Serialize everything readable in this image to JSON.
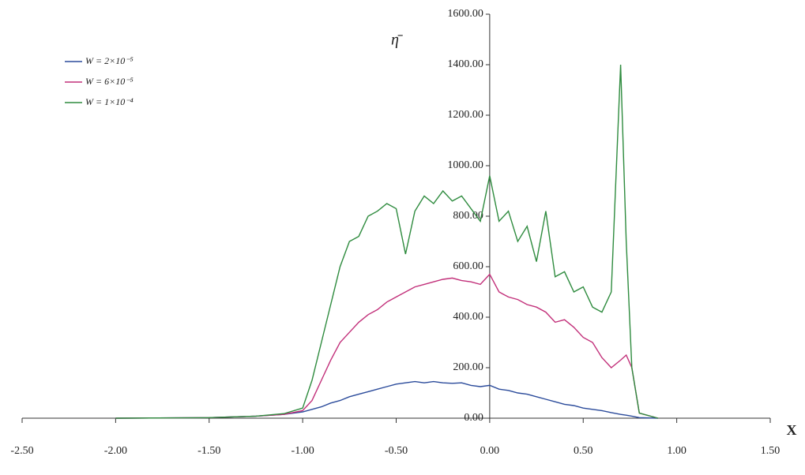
{
  "chart_data": {
    "type": "line",
    "y_label": "η̄",
    "x_label": "X",
    "x": [
      -2.0,
      -1.5,
      -1.25,
      -1.1,
      -1.0,
      -0.95,
      -0.9,
      -0.85,
      -0.8,
      -0.75,
      -0.7,
      -0.65,
      -0.6,
      -0.55,
      -0.5,
      -0.45,
      -0.4,
      -0.35,
      -0.3,
      -0.25,
      -0.2,
      -0.15,
      -0.1,
      -0.05,
      0,
      0.05,
      0.1,
      0.15,
      0.2,
      0.25,
      0.3,
      0.35,
      0.4,
      0.45,
      0.5,
      0.55,
      0.6,
      0.65,
      0.7,
      0.73,
      0.76,
      0.8,
      0.9
    ],
    "series": [
      {
        "name": "W = 2×10⁻⁵",
        "color": "#2b4b9b",
        "values": [
          0,
          2,
          8,
          15,
          25,
          35,
          45,
          60,
          70,
          85,
          95,
          105,
          115,
          125,
          135,
          140,
          145,
          140,
          145,
          140,
          138,
          140,
          130,
          125,
          130,
          115,
          110,
          100,
          95,
          85,
          75,
          65,
          55,
          50,
          40,
          35,
          30,
          22,
          15,
          12,
          8,
          2,
          0
        ]
      },
      {
        "name": "W = 6×10⁻⁵",
        "color": "#c2307a",
        "values": [
          0,
          2,
          8,
          15,
          30,
          70,
          150,
          230,
          300,
          340,
          380,
          410,
          430,
          460,
          480,
          500,
          520,
          530,
          540,
          550,
          555,
          545,
          540,
          530,
          570,
          500,
          480,
          470,
          450,
          440,
          420,
          380,
          390,
          360,
          320,
          300,
          240,
          200,
          230,
          250,
          200,
          20,
          0
        ]
      },
      {
        "name": "W = 1×10⁻⁴",
        "color": "#2e8b3e",
        "values": [
          0,
          2,
          8,
          18,
          40,
          150,
          300,
          450,
          600,
          700,
          720,
          800,
          820,
          850,
          830,
          650,
          820,
          880,
          850,
          900,
          860,
          880,
          830,
          780,
          960,
          780,
          820,
          700,
          760,
          620,
          820,
          560,
          580,
          500,
          520,
          440,
          420,
          500,
          1400,
          700,
          200,
          20,
          0
        ]
      }
    ],
    "xlim": [
      -2.5,
      1.5
    ],
    "xticks": [
      {
        "value": -2.5,
        "label": "-2.50"
      },
      {
        "value": -2.0,
        "label": "-2.00"
      },
      {
        "value": -1.5,
        "label": "-1.50"
      },
      {
        "value": -1.0,
        "label": "-1.00"
      },
      {
        "value": -0.5,
        "label": "-0.50"
      },
      {
        "value": 0,
        "label": "0.00"
      },
      {
        "value": 0.5,
        "label": "0.50"
      },
      {
        "value": 1.0,
        "label": "1.00"
      },
      {
        "value": 1.5,
        "label": "1.50"
      }
    ],
    "ylim": [
      0,
      1600
    ],
    "yticks": [
      {
        "value": 0,
        "label": "0.00"
      },
      {
        "value": 200,
        "label": "200.00"
      },
      {
        "value": 400,
        "label": "400.00"
      },
      {
        "value": 600,
        "label": "600.00"
      },
      {
        "value": 800,
        "label": "800.00"
      },
      {
        "value": 1000,
        "label": "1000.00"
      },
      {
        "value": 1200,
        "label": "1200.00"
      },
      {
        "value": 1400,
        "label": "1400.00"
      },
      {
        "value": 1600,
        "label": "1600.00"
      }
    ],
    "legend": "upper left"
  }
}
